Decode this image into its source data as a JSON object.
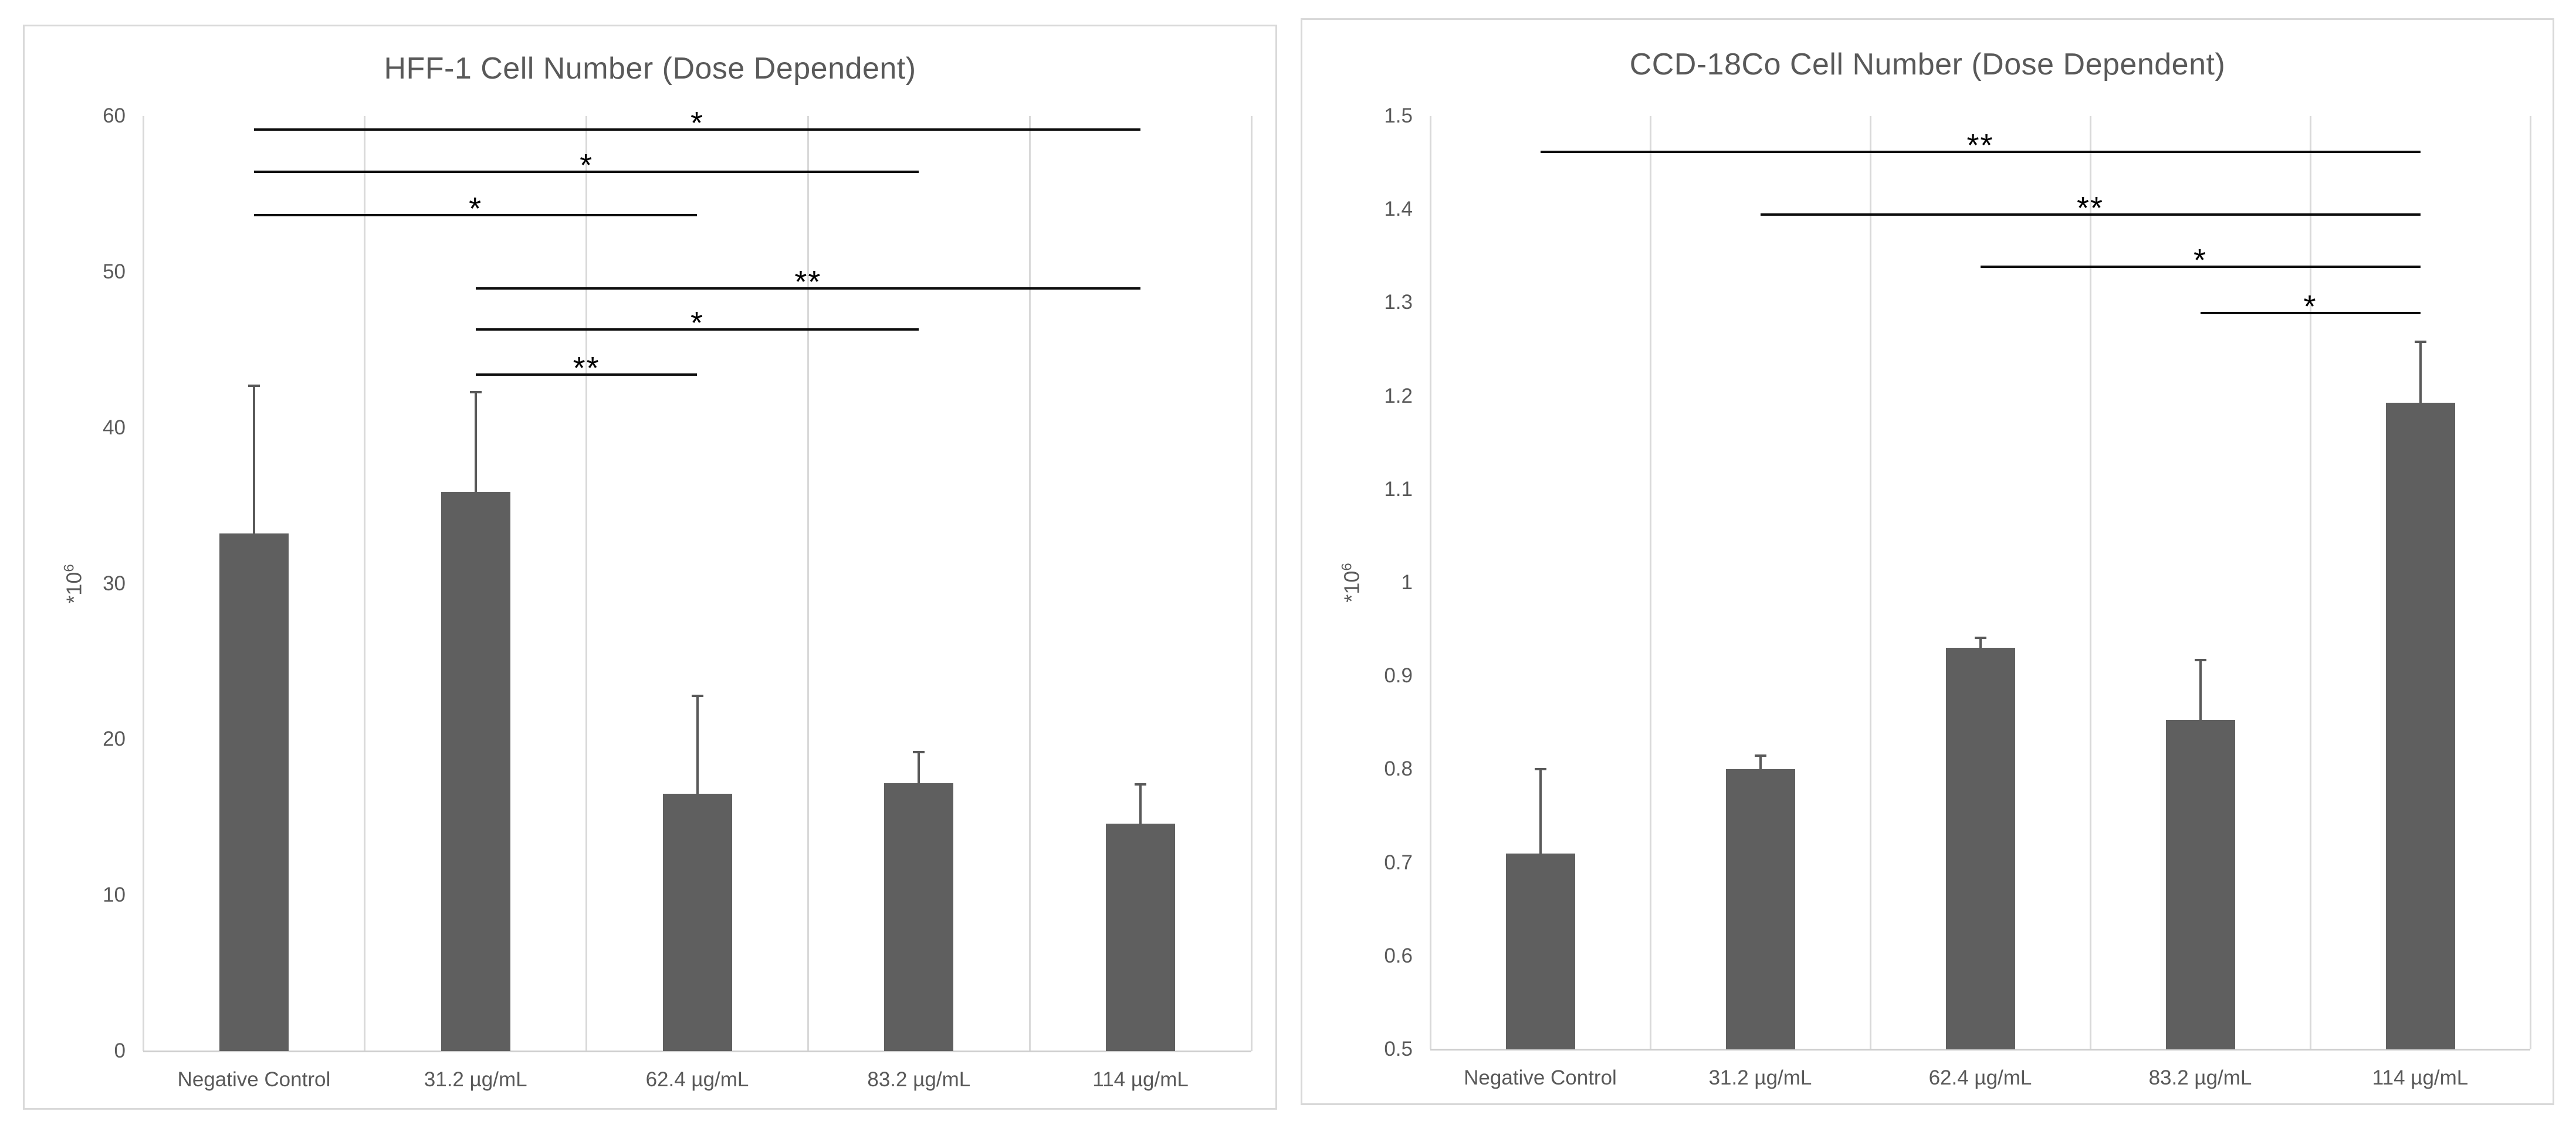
{
  "page": {
    "background": "#ffffff"
  },
  "ui": {
    "border_color": "#d9d9d9",
    "gridline_color": "#d9d9d9",
    "axis_line_color": "#cfcfcf",
    "text_color": "#595959",
    "bracket_color": "#0d0d0d"
  },
  "chart_data": [
    {
      "type": "bar",
      "title": "HFF-1 Cell Number (Dose Dependent)",
      "ylabel": "*10⁶",
      "ylabel_base": "*10",
      "ylabel_exp": "6",
      "xlabel": "",
      "categories": [
        "Negative Control",
        "31.2 µg/mL",
        "62.4 µg/mL",
        "83.2 µg/mL",
        "114 µg/mL"
      ],
      "values": [
        33.2,
        35.9,
        16.5,
        17.2,
        14.6
      ],
      "error_plus": [
        9.5,
        6.4,
        6.3,
        2.0,
        2.5
      ],
      "error_top": [
        42.7,
        42.3,
        22.8,
        19.2,
        17.1
      ],
      "ylim": [
        0,
        60
      ],
      "ytick_step": 10,
      "ytick_labels": [
        "0",
        "10",
        "20",
        "30",
        "40",
        "50",
        "60"
      ],
      "grid": "vertical-category-separators",
      "legend": "none",
      "bar_color": "#5f5f5f",
      "significance_brackets": [
        {
          "from_index": 0,
          "to_index": 4,
          "y": 59.2,
          "label": "*"
        },
        {
          "from_index": 0,
          "to_index": 3,
          "y": 56.5,
          "label": "*"
        },
        {
          "from_index": 0,
          "to_index": 2,
          "y": 53.7,
          "label": "*"
        },
        {
          "from_index": 1,
          "to_index": 4,
          "y": 49.0,
          "label": "**"
        },
        {
          "from_index": 1,
          "to_index": 3,
          "y": 46.4,
          "label": "*"
        },
        {
          "from_index": 1,
          "to_index": 2,
          "y": 43.5,
          "label": "**"
        }
      ]
    },
    {
      "type": "bar",
      "title": "CCD-18Co Cell Number (Dose Dependent)",
      "ylabel": "*10⁶",
      "ylabel_base": "*10",
      "ylabel_exp": "6",
      "xlabel": "",
      "categories": [
        "Negative Control",
        "31.2 µg/mL",
        "62.4 µg/mL",
        "83.2 µg/mL",
        "114 µg/mL"
      ],
      "values": [
        0.71,
        0.8,
        0.93,
        0.853,
        1.193
      ],
      "error_plus": [
        0.09,
        0.015,
        0.011,
        0.064,
        0.065
      ],
      "error_top": [
        0.8,
        0.815,
        0.941,
        0.917,
        1.258
      ],
      "ylim": [
        0.5,
        1.5
      ],
      "ytick_step": 0.1,
      "ytick_labels": [
        "0.5",
        "0.6",
        "0.7",
        "0.8",
        "0.9",
        "1",
        "1.1",
        "1.2",
        "1.3",
        "1.4",
        "1.5"
      ],
      "grid": "vertical-category-separators",
      "legend": "none",
      "bar_color": "#5f5f5f",
      "significance_brackets": [
        {
          "from_index": 0,
          "to_index": 4,
          "y": 1.463,
          "label": "**"
        },
        {
          "from_index": 1,
          "to_index": 4,
          "y": 1.396,
          "label": "**"
        },
        {
          "from_index": 2,
          "to_index": 4,
          "y": 1.34,
          "label": "*"
        },
        {
          "from_index": 3,
          "to_index": 4,
          "y": 1.29,
          "label": "*"
        }
      ]
    }
  ]
}
